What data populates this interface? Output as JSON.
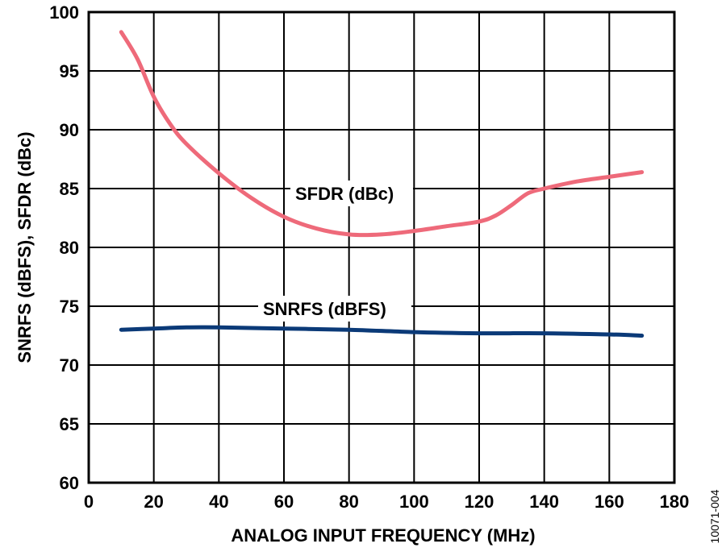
{
  "chart_data": {
    "type": "line",
    "xlabel": "ANALOG INPUT FREQUENCY (MHz)",
    "ylabel": "SNRFS (dBFS), SFDR (dBc)",
    "xlim": [
      0,
      180
    ],
    "ylim": [
      60,
      100
    ],
    "x_ticks": [
      0,
      20,
      40,
      60,
      80,
      100,
      120,
      140,
      160,
      180
    ],
    "y_ticks": [
      60,
      65,
      70,
      75,
      80,
      85,
      90,
      95,
      100
    ],
    "grid": true,
    "series": [
      {
        "name": "SFDR (dBc)",
        "color": "#ee6a7a",
        "x": [
          10,
          15,
          20,
          25,
          30,
          40,
          50,
          60,
          70,
          80,
          90,
          100,
          110,
          120,
          125,
          130,
          135,
          140,
          150,
          160,
          170
        ],
        "y": [
          98.3,
          96.0,
          92.8,
          90.5,
          88.8,
          86.3,
          84.2,
          82.6,
          81.6,
          81.1,
          81.1,
          81.4,
          81.8,
          82.2,
          82.7,
          83.6,
          84.6,
          85.0,
          85.6,
          86.0,
          86.4
        ]
      },
      {
        "name": "SNRFS (dBFS)",
        "color": "#0b3a78",
        "x": [
          10,
          20,
          30,
          40,
          60,
          80,
          100,
          120,
          140,
          160,
          170
        ],
        "y": [
          73.0,
          73.1,
          73.2,
          73.2,
          73.1,
          73.0,
          72.8,
          72.7,
          72.7,
          72.6,
          72.5
        ]
      }
    ],
    "figure_id": "10071-004"
  }
}
